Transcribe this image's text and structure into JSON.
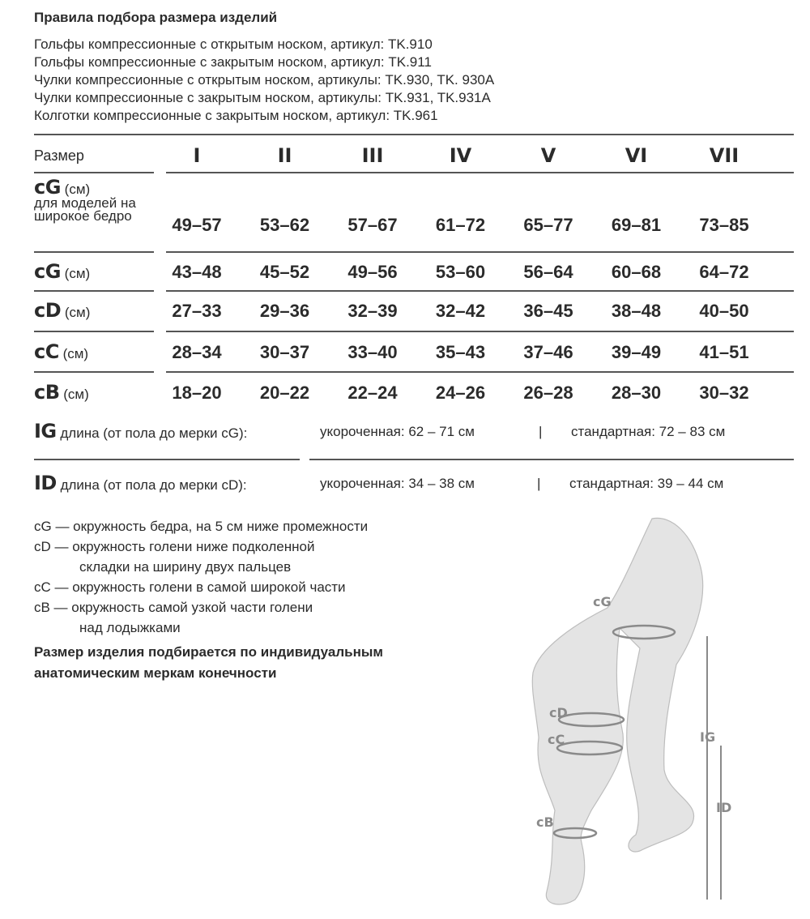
{
  "title": "Правила подбора размера изделий",
  "products": [
    "Гольфы компрессионные с открытым носком, артикул: TK.910",
    "Гольфы компрессионные с закрытым носком, артикул: TK.911",
    "Чулки компрессионные с открытым носком, артикулы: TK.930, TK. 930A",
    "Чулки компрессионные с закрытым носком, артикулы: TK.931, TK.931A",
    "Колготки компрессионные с закрытым носком, артикул: TK.961"
  ],
  "table": {
    "size_label": "Размер",
    "sizes": [
      "I",
      "II",
      "III",
      "IV",
      "V",
      "VI",
      "VII"
    ],
    "rows": [
      {
        "code": "cG",
        "unit": "(см)",
        "note": "для моделей на широкое бедро",
        "values": [
          "49–57",
          "53–62",
          "57–67",
          "61–72",
          "65–77",
          "69–81",
          "73–85"
        ]
      },
      {
        "code": "cG",
        "unit": "(см)",
        "values": [
          "43–48",
          "45–52",
          "49–56",
          "53–60",
          "56–64",
          "60–68",
          "64–72"
        ]
      },
      {
        "code": "cD",
        "unit": "(см)",
        "values": [
          "27–33",
          "29–36",
          "32–39",
          "32–42",
          "36–45",
          "38–48",
          "40–50"
        ]
      },
      {
        "code": "cC",
        "unit": "(см)",
        "values": [
          "28–34",
          "30–37",
          "33–40",
          "35–43",
          "37–46",
          "39–49",
          "41–51"
        ]
      },
      {
        "code": "cB",
        "unit": "(см)",
        "values": [
          "18–20",
          "20–22",
          "22–24",
          "24–26",
          "26–28",
          "28–30",
          "30–32"
        ]
      }
    ]
  },
  "lengths": [
    {
      "code": "IG",
      "label": "длина (от пола до мерки cG):",
      "short": "укороченная: 62 – 71 см",
      "sep": "|",
      "standard": "стандартная: 72 – 83 см"
    },
    {
      "code": "ID",
      "label": "длина (от пола до мерки cD):",
      "short": "укороченная: 34 – 38 см",
      "sep": "|",
      "standard": "стандартная: 39 – 44 см"
    }
  ],
  "legend": [
    "cG — окружность бедра, на 5 см ниже промежности",
    "cD — окружность голени ниже подколенной",
    "складки на ширину двух пальцев",
    "cC — окружность голени в самой широкой части",
    "cB — окружность самой узкой части голени",
    "над лодыжками"
  ],
  "note": [
    "Размер изделия подбирается по индивидуальным",
    "анатомическим меркам конечности"
  ],
  "figure": {
    "labels": {
      "cG": "cG",
      "cD": "cD",
      "cC": "cC",
      "cB": "cB",
      "IG": "IG",
      "ID": "ID"
    }
  }
}
